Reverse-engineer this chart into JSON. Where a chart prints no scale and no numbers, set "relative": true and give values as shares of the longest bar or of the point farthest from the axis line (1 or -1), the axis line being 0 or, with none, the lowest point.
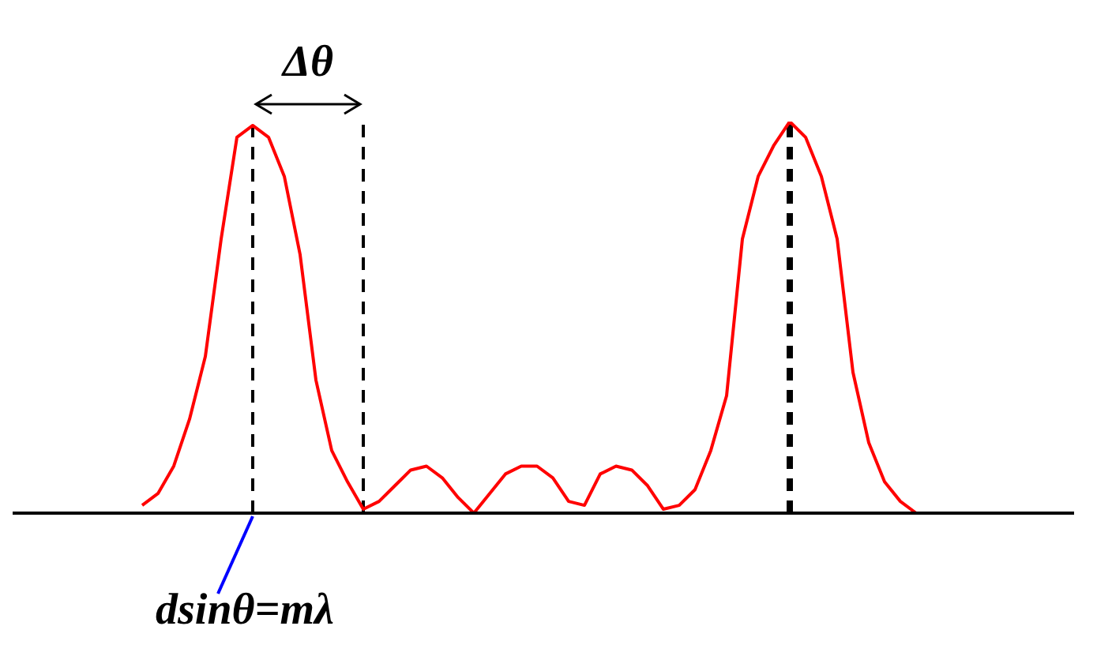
{
  "chart_data": {
    "type": "line",
    "relative": true,
    "color": "#ff0000",
    "marker": "none",
    "line_style": "solid",
    "categories": [
      null,
      null,
      null,
      null,
      null,
      null,
      null,
      null,
      null,
      null,
      null,
      null,
      null,
      null,
      null,
      null,
      null,
      null,
      null,
      null,
      null,
      null,
      null,
      null,
      null,
      null,
      null,
      null,
      null,
      null,
      null,
      null,
      null,
      null,
      null,
      null,
      null,
      null,
      null,
      null,
      null,
      null,
      null,
      null,
      null,
      null,
      null,
      null,
      null,
      null
    ],
    "values": [
      0.02,
      0.05,
      0.12,
      0.24,
      0.4,
      0.7,
      0.96,
      0.99,
      0.96,
      0.86,
      0.66,
      0.34,
      0.16,
      0.08,
      0.01,
      0.03,
      0.07,
      0.11,
      0.12,
      0.09,
      0.04,
      0,
      0.05,
      0.1,
      0.12,
      0.12,
      0.09,
      0.03,
      0.02,
      0.1,
      0.12,
      0.11,
      0.07,
      0.01,
      0.02,
      0.06,
      0.16,
      0.3,
      0.7,
      0.86,
      0.94,
      1,
      0.96,
      0.86,
      0.7,
      0.36,
      0.18,
      0.08,
      0.03,
      0
    ],
    "annotations": [
      "Δθ",
      "dsinθ=mλ"
    ]
  }
}
